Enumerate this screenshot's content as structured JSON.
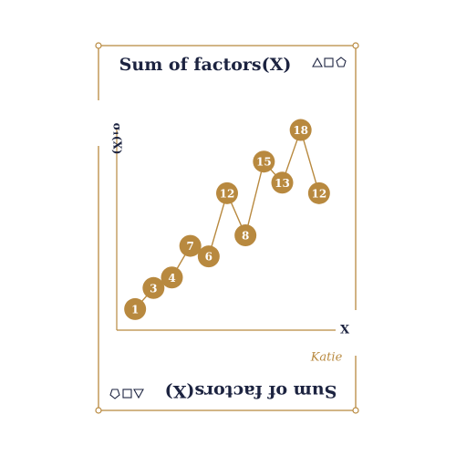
{
  "chart_data": {
    "type": "line",
    "title": "Sum of factors(X)",
    "x_label": "X",
    "y_label": "σ₁(X)",
    "signature": "Katie",
    "x": [
      1,
      2,
      3,
      4,
      5,
      6,
      7,
      8,
      9,
      10,
      11
    ],
    "values": [
      1,
      3,
      4,
      7,
      6,
      12,
      8,
      15,
      13,
      18,
      12
    ],
    "color": "#b8893f",
    "label_color": "#ffffff",
    "xlim": [
      0,
      12
    ],
    "ylim": [
      -1,
      19
    ]
  }
}
